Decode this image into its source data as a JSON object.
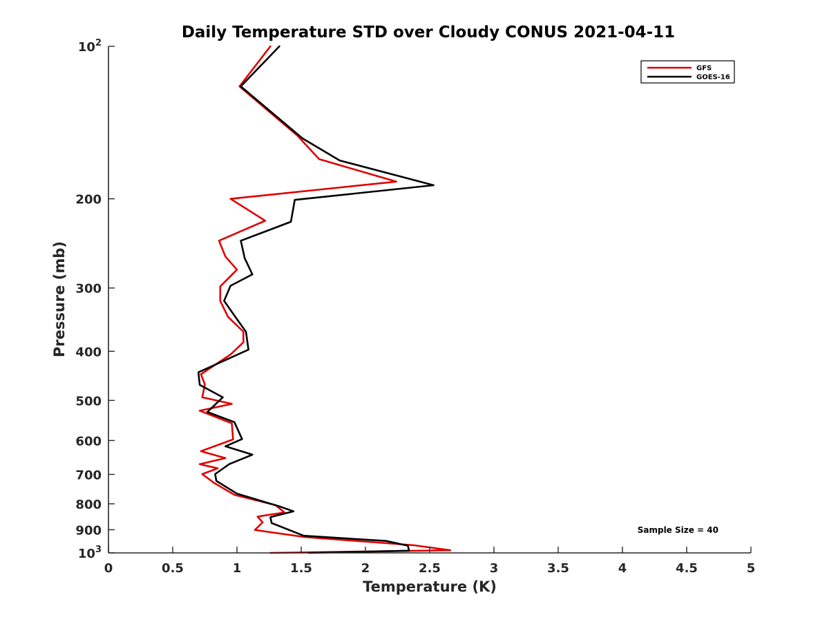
{
  "chart_data": {
    "type": "line",
    "title": "Daily Temperature STD over Cloudy CONUS 2021-04-11",
    "xlabel": "Temperature (K)",
    "ylabel": "Pressure (mb)",
    "xlim": [
      0,
      5
    ],
    "ylim": [
      100,
      1000
    ],
    "yscale": "log",
    "y_reversed": true,
    "x_ticks": [
      "0",
      "0.5",
      "1",
      "1.5",
      "2",
      "2.5",
      "3",
      "3.5",
      "4",
      "4.5",
      "5"
    ],
    "x_tick_values": [
      0,
      0.5,
      1,
      1.5,
      2,
      2.5,
      3,
      3.5,
      4,
      4.5,
      5
    ],
    "y_ticks": [
      {
        "value": 100,
        "base": "10",
        "exp": "2"
      },
      {
        "value": 200,
        "label": "200"
      },
      {
        "value": 300,
        "label": "300"
      },
      {
        "value": 400,
        "label": "400"
      },
      {
        "value": 500,
        "label": "500"
      },
      {
        "value": 600,
        "label": "600"
      },
      {
        "value": 700,
        "label": "700"
      },
      {
        "value": 800,
        "label": "800"
      },
      {
        "value": 900,
        "label": "900"
      },
      {
        "value": 1000,
        "base": "10",
        "exp": "3"
      }
    ],
    "grid": false,
    "legend_position": "top-right",
    "annotation": "Sample Size = 40",
    "series": [
      {
        "name": "GFS",
        "color": "#e00000",
        "points": [
          [
            1.26,
            100
          ],
          [
            1.02,
            120
          ],
          [
            1.47,
            150
          ],
          [
            1.64,
            167
          ],
          [
            2.24,
            185
          ],
          [
            0.95,
            200
          ],
          [
            1.22,
            221
          ],
          [
            0.86,
            242
          ],
          [
            0.91,
            260
          ],
          [
            1.0,
            276
          ],
          [
            0.87,
            298
          ],
          [
            0.87,
            318
          ],
          [
            0.93,
            342
          ],
          [
            1.05,
            366
          ],
          [
            1.05,
            384
          ],
          [
            0.95,
            406
          ],
          [
            0.72,
            444
          ],
          [
            0.75,
            465
          ],
          [
            0.73,
            493
          ],
          [
            0.96,
            508
          ],
          [
            0.71,
            524
          ],
          [
            0.96,
            555
          ],
          [
            0.97,
            597
          ],
          [
            0.72,
            630
          ],
          [
            0.91,
            650
          ],
          [
            0.71,
            668
          ],
          [
            0.85,
            681
          ],
          [
            0.73,
            699
          ],
          [
            0.82,
            727
          ],
          [
            0.98,
            768
          ],
          [
            1.3,
            805
          ],
          [
            1.37,
            832
          ],
          [
            1.16,
            848
          ],
          [
            1.2,
            870
          ],
          [
            1.14,
            901
          ],
          [
            1.52,
            930
          ],
          [
            2.38,
            966
          ],
          [
            2.66,
            988
          ],
          [
            1.26,
            1000
          ]
        ]
      },
      {
        "name": "GOES-16",
        "color": "#000000",
        "points": [
          [
            1.33,
            100
          ],
          [
            1.03,
            120
          ],
          [
            1.51,
            152
          ],
          [
            1.8,
            168
          ],
          [
            2.53,
            188
          ],
          [
            1.45,
            201
          ],
          [
            1.42,
            222
          ],
          [
            1.03,
            242
          ],
          [
            1.06,
            262
          ],
          [
            1.12,
            282
          ],
          [
            0.95,
            297
          ],
          [
            0.9,
            318
          ],
          [
            0.98,
            340
          ],
          [
            1.07,
            366
          ],
          [
            1.09,
            397
          ],
          [
            0.7,
            440
          ],
          [
            0.71,
            466
          ],
          [
            0.89,
            493
          ],
          [
            0.77,
            527
          ],
          [
            0.98,
            552
          ],
          [
            1.04,
            596
          ],
          [
            0.91,
            616
          ],
          [
            1.12,
            640
          ],
          [
            0.94,
            668
          ],
          [
            0.83,
            699
          ],
          [
            0.84,
            721
          ],
          [
            1.0,
            764
          ],
          [
            1.34,
            811
          ],
          [
            1.44,
            828
          ],
          [
            1.26,
            850
          ],
          [
            1.27,
            873
          ],
          [
            1.52,
            925
          ],
          [
            2.16,
            947
          ],
          [
            2.33,
            968
          ],
          [
            2.34,
            990
          ],
          [
            1.56,
            1000
          ]
        ]
      }
    ]
  }
}
